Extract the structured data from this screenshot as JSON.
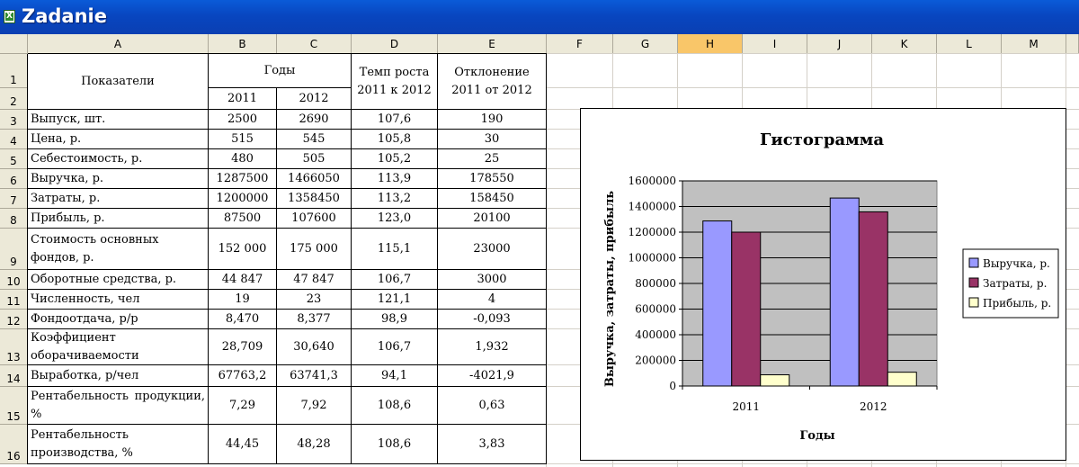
{
  "window": {
    "title": "Zadanie"
  },
  "columns": [
    "A",
    "B",
    "C",
    "D",
    "E",
    "F",
    "G",
    "H",
    "I",
    "J",
    "K",
    "L",
    "M"
  ],
  "selected_column": "H",
  "rows": [
    "1",
    "2",
    "3",
    "4",
    "5",
    "6",
    "7",
    "8",
    "9",
    "10",
    "11",
    "12",
    "13",
    "14",
    "15",
    "16"
  ],
  "table": {
    "header": {
      "pokazateli": "Показатели",
      "gody": "Годы",
      "year1": "2011",
      "year2": "2012",
      "temp_line1": "Темп роста",
      "temp_line2": "2011 к 2012",
      "otkl_line1": "Отклонение",
      "otkl_line2": "2011 от 2012"
    },
    "body": [
      {
        "label": "Выпуск, шт.",
        "b": "2500",
        "c": "2690",
        "d": "107,6",
        "e": "190"
      },
      {
        "label": "Цена, р.",
        "b": "515",
        "c": "545",
        "d": "105,8",
        "e": "30"
      },
      {
        "label": "Себестоимость, р.",
        "b": "480",
        "c": "505",
        "d": "105,2",
        "e": "25"
      },
      {
        "label": "Выручка, р.",
        "b": "1287500",
        "c": "1466050",
        "d": "113,9",
        "e": "178550"
      },
      {
        "label": "Затраты, р.",
        "b": "1200000",
        "c": "1358450",
        "d": "113,2",
        "e": "158450"
      },
      {
        "label": "Прибыль, р.",
        "b": "87500",
        "c": "107600",
        "d": "123,0",
        "e": "20100"
      },
      {
        "label": "Стоимость основных фондов, р.",
        "b": "152 000",
        "c": "175 000",
        "d": "115,1",
        "e": "23000"
      },
      {
        "label": "Оборотные средства, р.",
        "b": "44 847",
        "c": "47 847",
        "d": "106,7",
        "e": "3000"
      },
      {
        "label": "Численность, чел",
        "b": "19",
        "c": "23",
        "d": "121,1",
        "e": "4"
      },
      {
        "label": "Фондоотдача, р/р",
        "b": "8,470",
        "c": "8,377",
        "d": "98,9",
        "e": "-0,093"
      },
      {
        "label": "Коэффициент оборачиваемости",
        "b": "28,709",
        "c": "30,640",
        "d": "106,7",
        "e": "1,932"
      },
      {
        "label": "Выработка, р/чел",
        "b": "67763,2",
        "c": "63741,3",
        "d": "94,1",
        "e": "-4021,9"
      },
      {
        "label": "Рентабельность продукции, %",
        "b": "7,29",
        "c": "7,92",
        "d": "108,6",
        "e": "0,63"
      },
      {
        "label": "Рентабельность производства, %",
        "b": "44,45",
        "c": "48,28",
        "d": "108,6",
        "e": "3,83"
      }
    ]
  },
  "chart_data": {
    "type": "bar",
    "title": "Гистограмма",
    "xlabel": "Годы",
    "ylabel": "Выручка, затраты, прибыль",
    "categories": [
      "2011",
      "2012"
    ],
    "series": [
      {
        "name": "Выручка, р.",
        "values": [
          1287500,
          1466050
        ],
        "color": "#9999ff"
      },
      {
        "name": "Затраты, р.",
        "values": [
          1200000,
          1358450
        ],
        "color": "#993366"
      },
      {
        "name": "Прибыль, р.",
        "values": [
          87500,
          107600
        ],
        "color": "#ffffcc"
      }
    ],
    "ylim": [
      0,
      1600000
    ],
    "yticks": [
      0,
      200000,
      400000,
      600000,
      800000,
      1000000,
      1200000,
      1400000,
      1600000
    ],
    "plot_background": "#c0c0c0",
    "grid": true,
    "legend": "right"
  }
}
